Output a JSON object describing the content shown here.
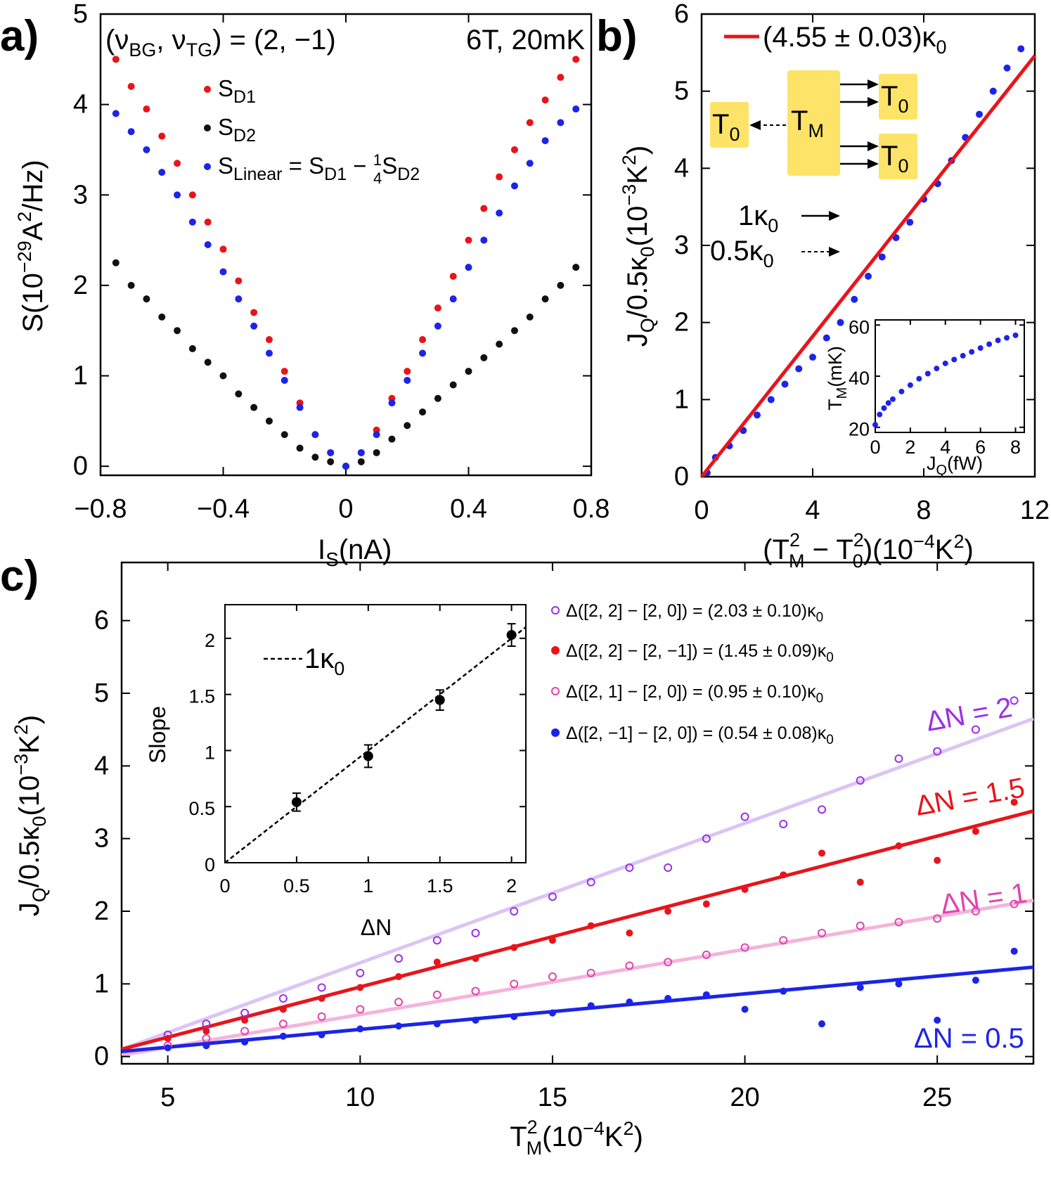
{
  "panel_labels": {
    "a": "a)",
    "b": "b)",
    "c": "c)"
  },
  "chart_data": [
    {
      "panel": "a",
      "type": "scatter",
      "xlabel": "I_S(nA)",
      "ylabel": "S(10^-29 A^2/Hz)",
      "xlim": [
        -0.8,
        0.8
      ],
      "ylim": [
        -0.1,
        5.0
      ],
      "xticks": [
        "-0.8",
        "-0.4",
        "0",
        "0.4",
        "0.8"
      ],
      "yticks": [
        "0",
        "1",
        "2",
        "3",
        "4",
        "5"
      ],
      "annotations": [
        "(ν_BG, ν_TG) = (2, −1)",
        "6T, 20mK"
      ],
      "legend_position": "upper-center",
      "series": [
        {
          "name": "S_D1",
          "color": "#e8141b",
          "marker": "filled-circle",
          "x": [
            -0.75,
            -0.7,
            -0.65,
            -0.6,
            -0.55,
            -0.5,
            -0.45,
            -0.4,
            -0.35,
            -0.3,
            -0.25,
            -0.2,
            -0.15,
            -0.1,
            -0.05,
            0,
            0.05,
            0.1,
            0.15,
            0.2,
            0.25,
            0.3,
            0.35,
            0.4,
            0.45,
            0.5,
            0.55,
            0.6,
            0.65,
            0.7,
            0.75
          ],
          "y": [
            4.5,
            4.2,
            3.95,
            3.65,
            3.35,
            3.0,
            2.7,
            2.4,
            2.05,
            1.7,
            1.4,
            1.05,
            0.7,
            0.35,
            0.15,
            0.0,
            0.15,
            0.4,
            0.75,
            1.05,
            1.4,
            1.75,
            2.1,
            2.5,
            2.85,
            3.2,
            3.5,
            3.8,
            4.05,
            4.3,
            4.5
          ]
        },
        {
          "name": "S_D2",
          "color": "#111111",
          "marker": "filled-circle",
          "x": [
            -0.75,
            -0.7,
            -0.65,
            -0.6,
            -0.55,
            -0.5,
            -0.45,
            -0.4,
            -0.35,
            -0.3,
            -0.25,
            -0.2,
            -0.15,
            -0.1,
            -0.05,
            0,
            0.05,
            0.1,
            0.15,
            0.2,
            0.25,
            0.3,
            0.35,
            0.4,
            0.45,
            0.5,
            0.55,
            0.6,
            0.65,
            0.7,
            0.75
          ],
          "y": [
            2.25,
            2.0,
            1.85,
            1.65,
            1.5,
            1.3,
            1.15,
            1.0,
            0.8,
            0.65,
            0.5,
            0.35,
            0.2,
            0.1,
            0.05,
            0.0,
            0.05,
            0.15,
            0.3,
            0.45,
            0.6,
            0.75,
            0.9,
            1.05,
            1.2,
            1.35,
            1.5,
            1.65,
            1.85,
            2.0,
            2.2
          ]
        },
        {
          "name": "S_Linear = S_D1 − ¼S_D2",
          "color": "#1c24e8",
          "marker": "filled-circle",
          "x": [
            -0.75,
            -0.7,
            -0.65,
            -0.6,
            -0.55,
            -0.5,
            -0.45,
            -0.4,
            -0.35,
            -0.3,
            -0.25,
            -0.2,
            -0.15,
            -0.1,
            -0.05,
            0,
            0.05,
            0.1,
            0.15,
            0.2,
            0.25,
            0.3,
            0.35,
            0.4,
            0.45,
            0.5,
            0.55,
            0.6,
            0.65,
            0.7,
            0.75
          ],
          "y": [
            3.9,
            3.7,
            3.5,
            3.25,
            3.0,
            2.7,
            2.45,
            2.15,
            1.85,
            1.55,
            1.25,
            0.95,
            0.65,
            0.35,
            0.15,
            0.0,
            0.15,
            0.35,
            0.7,
            0.95,
            1.25,
            1.55,
            1.85,
            2.2,
            2.5,
            2.8,
            3.1,
            3.35,
            3.6,
            3.8,
            3.95
          ]
        }
      ]
    },
    {
      "panel": "b",
      "type": "scatter",
      "xlabel": "(T_M^2 − T_0^2)(10^-4 K^2)",
      "ylabel": "J_Q/0.5κ_0(10^-3 K^2)",
      "xlim": [
        0,
        12
      ],
      "ylim": [
        0,
        6
      ],
      "xticks": [
        "0",
        "4",
        "8",
        "12"
      ],
      "yticks": [
        "0",
        "1",
        "2",
        "3",
        "4",
        "5",
        "6"
      ],
      "legend_position": "top",
      "series": [
        {
          "name": "data",
          "color": "#1c24e8",
          "marker": "filled-circle",
          "x": [
            0.2,
            0.5,
            1.0,
            1.5,
            2.0,
            2.5,
            3.0,
            3.5,
            4.0,
            4.5,
            5.0,
            5.5,
            6.0,
            6.5,
            7.0,
            7.5,
            8.0,
            8.5,
            9.0,
            9.5,
            10.0,
            10.5,
            11.0,
            11.5
          ],
          "y": [
            0.05,
            0.25,
            0.4,
            0.6,
            0.8,
            1.0,
            1.2,
            1.4,
            1.55,
            1.8,
            2.0,
            2.3,
            2.6,
            2.85,
            3.1,
            3.3,
            3.6,
            3.8,
            4.1,
            4.4,
            4.7,
            5.0,
            5.3,
            5.55
          ]
        },
        {
          "name": "(4.55 ± 0.03)κ_0",
          "color": "#e8141b",
          "type": "line",
          "x": [
            0,
            12
          ],
          "y": [
            0,
            5.46
          ]
        }
      ],
      "diagram": {
        "source": "T_M",
        "drains": [
          "T_0",
          "T_0",
          "T_0"
        ],
        "arrow_legend": [
          "1κ_0",
          "0.5κ_0"
        ]
      },
      "inset": {
        "type": "scatter",
        "xlabel": "J_Q(fW)",
        "ylabel": "T_M(mK)",
        "xlim": [
          0,
          8.5
        ],
        "ylim": [
          18,
          62
        ],
        "xticks": [
          "0",
          "2",
          "4",
          "6",
          "8"
        ],
        "yticks": [
          "20",
          "40",
          "60"
        ],
        "series": [
          {
            "name": "data",
            "color": "#1c24e8",
            "x": [
              0,
              0.25,
              0.5,
              0.75,
              1,
              1.5,
              2,
              2.5,
              3,
              3.5,
              4,
              4.5,
              5,
              5.5,
              6,
              6.5,
              7,
              7.5,
              8
            ],
            "y": [
              21,
              25,
              27.5,
              29.5,
              31,
              34,
              36.5,
              39,
              41,
              43,
              45,
              46.5,
              48,
              49.5,
              51,
              52.5,
              54,
              55,
              56
            ]
          }
        ]
      }
    },
    {
      "panel": "c",
      "type": "scatter",
      "xlabel": "T_M^2(10^-4 K^2)",
      "ylabel": "J_Q/0.5κ_0(10^-3 K^2)",
      "xlim": [
        3.8,
        27.5
      ],
      "ylim": [
        -0.1,
        6.8
      ],
      "xticks": [
        "5",
        "10",
        "15",
        "20",
        "25"
      ],
      "yticks": [
        "0",
        "1",
        "2",
        "3",
        "4",
        "5",
        "6"
      ],
      "legend_position": "top-right",
      "series": [
        {
          "name": "Δ([2, 2] − [2, 0]) = (2.03 ± 0.10)κ_0",
          "color": "#9b30e8",
          "fit_color": "#dcc4f5",
          "marker": "open-circle",
          "line_label": "ΔN = 2",
          "x": [
            5,
            6,
            7,
            8,
            9,
            10,
            11,
            12,
            13,
            14,
            15,
            16,
            17,
            18,
            19,
            20,
            21,
            22,
            23,
            24,
            25,
            26,
            27
          ],
          "y": [
            0.3,
            0.45,
            0.6,
            0.8,
            0.95,
            1.15,
            1.35,
            1.6,
            1.7,
            2.0,
            2.2,
            2.4,
            2.6,
            2.6,
            3.0,
            3.3,
            3.2,
            3.4,
            3.8,
            4.1,
            4.2,
            4.5,
            4.9
          ],
          "fit": {
            "x": [
              3.8,
              27.5
            ],
            "y": [
              0.1,
              4.65
            ]
          }
        },
        {
          "name": "Δ([2, 2] − [2, −1]) = (1.45 ± 0.09)κ_0",
          "color": "#e8141b",
          "fit_color": "#e8141b",
          "marker": "filled-circle",
          "line_label": "ΔN = 1.5",
          "x": [
            5,
            6,
            7,
            8,
            9,
            10,
            11,
            12,
            13,
            14,
            15,
            16,
            17,
            18,
            19,
            20,
            21,
            22,
            23,
            24,
            25,
            26,
            27
          ],
          "y": [
            0.25,
            0.35,
            0.5,
            0.65,
            0.8,
            0.95,
            1.1,
            1.3,
            1.35,
            1.5,
            1.6,
            1.8,
            1.7,
            2.0,
            2.1,
            2.3,
            2.5,
            2.8,
            2.4,
            2.9,
            2.7,
            3.1,
            3.5
          ],
          "fit": {
            "x": [
              3.8,
              27.5
            ],
            "y": [
              0.1,
              3.38
            ]
          }
        },
        {
          "name": "Δ([2, 1] − [2, 0]) = (0.95 ± 0.10)κ_0",
          "color": "#e044b0",
          "fit_color": "#f4b4dc",
          "marker": "open-circle",
          "line_label": "ΔN = 1",
          "x": [
            5,
            6,
            7,
            8,
            9,
            10,
            11,
            12,
            13,
            14,
            15,
            16,
            17,
            18,
            19,
            20,
            21,
            22,
            23,
            24,
            25,
            26,
            27
          ],
          "y": [
            0.15,
            0.25,
            0.35,
            0.45,
            0.55,
            0.65,
            0.75,
            0.85,
            0.9,
            1.0,
            1.1,
            1.15,
            1.25,
            1.3,
            1.4,
            1.5,
            1.6,
            1.7,
            1.8,
            1.85,
            1.9,
            2.0,
            2.1
          ],
          "fit": {
            "x": [
              3.8,
              27.5
            ],
            "y": [
              0.02,
              2.15
            ]
          }
        },
        {
          "name": "Δ([2, −1] − [2, 0]) = (0.54 ± 0.08)κ_0",
          "color": "#1c24e8",
          "fit_color": "#1c24e8",
          "marker": "filled-circle",
          "line_label": "ΔN = 0.5",
          "x": [
            5,
            6,
            7,
            8,
            9,
            10,
            11,
            12,
            13,
            14,
            15,
            16,
            17,
            18,
            19,
            20,
            21,
            22,
            23,
            24,
            25,
            26,
            27
          ],
          "y": [
            0.12,
            0.15,
            0.2,
            0.28,
            0.3,
            0.38,
            0.42,
            0.45,
            0.5,
            0.55,
            0.6,
            0.7,
            0.75,
            0.8,
            0.85,
            0.65,
            0.9,
            0.45,
            0.95,
            1.0,
            0.5,
            1.05,
            1.45
          ],
          "fit": {
            "x": [
              3.8,
              27.5
            ],
            "y": [
              0.07,
              1.23
            ]
          }
        }
      ],
      "inset": {
        "type": "scatter",
        "xlabel": "ΔN",
        "ylabel": "Slope",
        "xlim": [
          0,
          2.1
        ],
        "ylim": [
          0,
          2.3
        ],
        "xticks": [
          "0",
          "0.5",
          "1",
          "1.5",
          "2"
        ],
        "yticks": [
          "0",
          "0.5",
          "1",
          "1.5",
          "2"
        ],
        "legend": "1κ_0",
        "points": {
          "x": [
            0.5,
            1.0,
            1.5,
            2.0
          ],
          "y": [
            0.54,
            0.95,
            1.45,
            2.03
          ],
          "err": [
            0.08,
            0.1,
            0.09,
            0.1
          ]
        },
        "reference_line": {
          "x": [
            0,
            2.1
          ],
          "y": [
            0,
            2.1
          ]
        }
      }
    }
  ]
}
